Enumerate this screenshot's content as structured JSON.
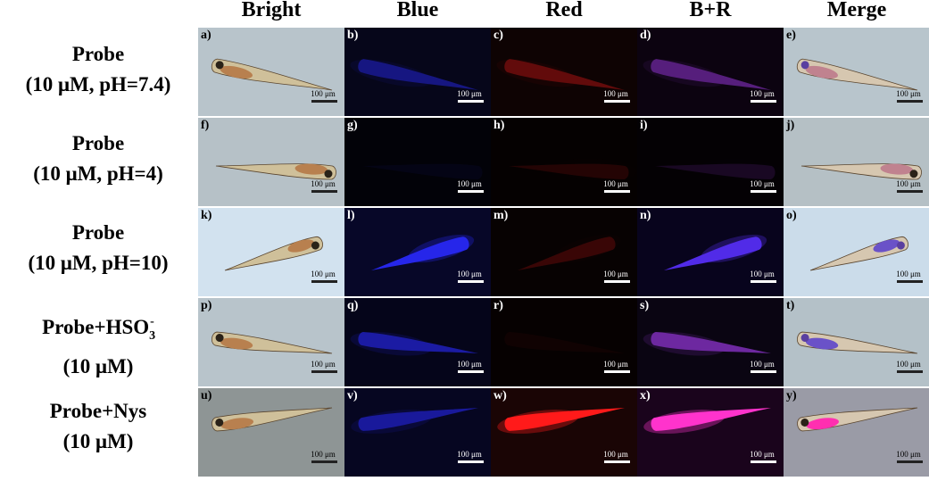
{
  "columns": [
    "Bright",
    "Blue",
    "Red",
    "B+R",
    "Merge"
  ],
  "rows": [
    {
      "label_line1": "Probe",
      "label_line2": "(10 μM, pH=7.4)",
      "panels": [
        "a)",
        "b)",
        "c)",
        "d)",
        "e)"
      ]
    },
    {
      "label_line1": "Probe",
      "label_line2": "(10 μM, pH=4)",
      "panels": [
        "f)",
        "g)",
        "h)",
        "i)",
        "j)"
      ]
    },
    {
      "label_line1": "Probe",
      "label_line2": "(10 μM, pH=10)",
      "panels": [
        "k)",
        "l)",
        "m)",
        "n)",
        "o)"
      ]
    },
    {
      "label_line1_pre": "Probe+HSO",
      "label_line1_sub": "3",
      "label_line1_sup": "-",
      "label_line2": "(10 μM)",
      "panels": [
        "p)",
        "q)",
        "r)",
        "s)",
        "t)"
      ]
    },
    {
      "label_line1": "Probe+Nys",
      "label_line2": "(10 μM)",
      "panels": [
        "u)",
        "v)",
        "w)",
        "x)",
        "y)"
      ]
    }
  ],
  "scale_bar_label": "100 μm",
  "colors": {
    "bright_bg": "#b9c3c8",
    "blue_channel": "#2a2aff",
    "red_channel": "#ff1a1a",
    "merge_channel": "#ff33cc"
  }
}
